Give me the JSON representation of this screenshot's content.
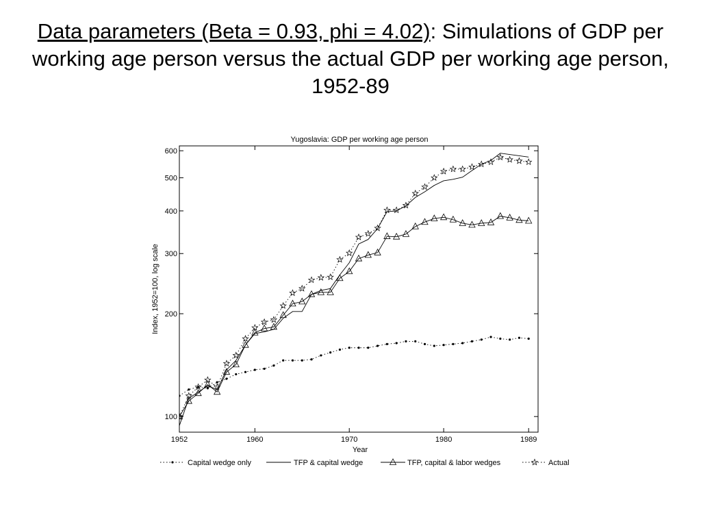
{
  "slide": {
    "title_underlined": "Data parameters (Beta = 0.93, phi = 4.02)",
    "title_rest": ": Simulations of GDP per working age person versus the actual GDP per working age person, 1952-89"
  },
  "chart_data": {
    "type": "line",
    "title": "Yugoslavia: GDP per working age person",
    "xlabel": "Year",
    "ylabel": "Index, 1952=100, log scale",
    "y_scale": "log",
    "xlim": [
      1952,
      1990
    ],
    "ylim": [
      90,
      620
    ],
    "x_ticks": [
      1952,
      1960,
      1970,
      1980,
      1989
    ],
    "y_ticks": [
      100,
      200,
      300,
      400,
      500,
      600
    ],
    "grid": false,
    "legend_position": "bottom",
    "x": [
      1952,
      1953,
      1954,
      1955,
      1956,
      1957,
      1958,
      1959,
      1960,
      1961,
      1962,
      1963,
      1964,
      1965,
      1966,
      1967,
      1968,
      1969,
      1970,
      1971,
      1972,
      1973,
      1974,
      1975,
      1976,
      1977,
      1978,
      1979,
      1980,
      1981,
      1982,
      1983,
      1984,
      1985,
      1986,
      1987,
      1988,
      1989
    ],
    "series": [
      {
        "name": "Capital wedge only",
        "style": "dotted-dot",
        "values": [
          115,
          120,
          122,
          121,
          126,
          129,
          133,
          135,
          137,
          138,
          141,
          146,
          146,
          146,
          147,
          151,
          154,
          157,
          159,
          159,
          159,
          161,
          163,
          164,
          166,
          166,
          163,
          161,
          162,
          163,
          164,
          166,
          168,
          171,
          169,
          168,
          170,
          169
        ]
      },
      {
        "name": "TFP & capital wedge",
        "style": "solid",
        "values": [
          94,
          113,
          118,
          123,
          120,
          137,
          146,
          162,
          175,
          177,
          180,
          194,
          203,
          203,
          228,
          234,
          237,
          260,
          282,
          320,
          330,
          355,
          398,
          400,
          414,
          438,
          455,
          475,
          490,
          495,
          502,
          525,
          548,
          562,
          590,
          585,
          580,
          575
        ]
      },
      {
        "name": "TFP, capital & labor wedges",
        "style": "triangle",
        "values": [
          100,
          111,
          117,
          124,
          118,
          135,
          142,
          162,
          176,
          181,
          183,
          198,
          214,
          217,
          228,
          231,
          231,
          254,
          266,
          290,
          297,
          302,
          337,
          336,
          342,
          360,
          371,
          380,
          383,
          377,
          368,
          364,
          368,
          370,
          386,
          382,
          376,
          374
        ]
      },
      {
        "name": "Actual",
        "style": "star",
        "values": [
          100,
          115,
          122,
          128,
          122,
          143,
          151,
          169,
          182,
          189,
          192,
          211,
          230,
          237,
          251,
          255,
          256,
          288,
          301,
          335,
          343,
          356,
          402,
          402,
          415,
          450,
          470,
          500,
          522,
          530,
          530,
          538,
          548,
          556,
          574,
          565,
          560,
          556
        ]
      }
    ]
  }
}
